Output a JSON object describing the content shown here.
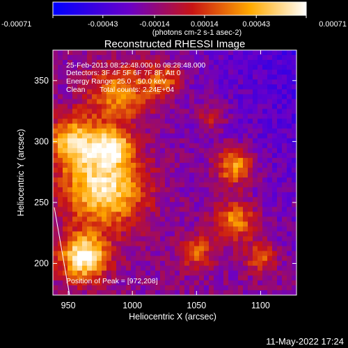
{
  "chart_data": {
    "type": "heatmap",
    "title": "Reconstructed RHESSI Image",
    "xlabel": "Heliocentric X (arcsec)",
    "ylabel": "Heliocentric Y (arcsec)",
    "x_range": [
      938,
      1128
    ],
    "y_range": [
      174,
      375
    ],
    "x_ticks": [
      950,
      1000,
      1050,
      1100
    ],
    "y_ticks": [
      200,
      250,
      300,
      350
    ],
    "colorbar": {
      "range": [
        -0.00071,
        0.00071
      ],
      "tick_values": [
        -0.00071,
        -0.00043,
        -0.00014,
        0.00014,
        0.00043,
        0.00071
      ],
      "tick_labels": [
        "-0.00071",
        "-0.00043",
        "-0.00014",
        "0.00014",
        "0.00043",
        "0.00071"
      ],
      "unit_label": "(photons cm-2 s-1 asec-2)",
      "colors": [
        "#0000ff",
        "#6a00c8",
        "#c81414",
        "#ffaa00",
        "#ffffff"
      ]
    },
    "annotations": [
      "25-Feb-2013 08:22:48.000 to 08:28:48.000",
      "Detectors: 3F 4F 5F 6F 7F 8F, Att 0",
      "Energy Range: 25.0 - 50.0 keV",
      "Clean",
      "Total counts: 2.24E+04",
      "Position of Peak = [972,208]"
    ],
    "peak": [
      972,
      208
    ],
    "intensity_sources": [
      {
        "x": 962,
        "y": 205,
        "sigma": 13,
        "amp": 1.0
      },
      {
        "x": 978,
        "y": 262,
        "sigma": 22,
        "amp": 0.9
      },
      {
        "x": 955,
        "y": 300,
        "sigma": 15,
        "amp": 0.75
      },
      {
        "x": 985,
        "y": 296,
        "sigma": 10,
        "amp": 0.7
      },
      {
        "x": 990,
        "y": 340,
        "sigma": 16,
        "amp": 0.6
      },
      {
        "x": 1025,
        "y": 350,
        "sigma": 10,
        "amp": 0.45
      },
      {
        "x": 1080,
        "y": 280,
        "sigma": 11,
        "amp": 0.7
      },
      {
        "x": 1080,
        "y": 235,
        "sigma": 12,
        "amp": 0.6
      },
      {
        "x": 1050,
        "y": 210,
        "sigma": 10,
        "amp": 0.45
      },
      {
        "x": 1100,
        "y": 205,
        "sigma": 9,
        "amp": 0.45
      },
      {
        "x": 1062,
        "y": 320,
        "sigma": 8,
        "amp": 0.35
      }
    ]
  },
  "footer": {
    "timestamp": "11-May-2022 17:24"
  }
}
